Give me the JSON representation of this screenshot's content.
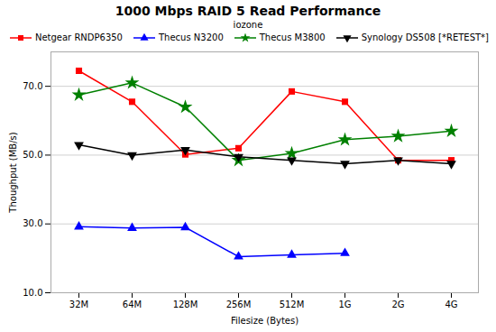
{
  "chart_data": {
    "type": "line",
    "title": "1000 Mbps RAID 5 Read Performance",
    "subtitle": "iozone",
    "xlabel": "Filesize (Bytes)",
    "ylabel": "Thoughput (MB/s)",
    "categories": [
      "32M",
      "64M",
      "128M",
      "256M",
      "512M",
      "1G",
      "2G",
      "4G"
    ],
    "series": [
      {
        "name": "Netgear RNDP6350",
        "color": "#ff0000",
        "marker": "square",
        "values": [
          74.5,
          65.5,
          50.2,
          52.0,
          68.5,
          65.5,
          48.5,
          48.5
        ]
      },
      {
        "name": "Thecus N3200",
        "color": "#0000ff",
        "marker": "triangle-up",
        "values": [
          29.2,
          28.8,
          29.0,
          20.5,
          21.0,
          21.5,
          null,
          null
        ]
      },
      {
        "name": "Thecus M3800",
        "color": "#008000",
        "marker": "star",
        "values": [
          67.5,
          71.0,
          64.0,
          48.5,
          50.5,
          54.5,
          55.5,
          57.0
        ]
      },
      {
        "name": "Synology DS508 [*RETEST*]",
        "color": "#000000",
        "marker": "triangle-down",
        "values": [
          53.0,
          50.0,
          51.5,
          49.5,
          48.5,
          47.5,
          48.5,
          47.5
        ]
      }
    ],
    "ylim": [
      10.0,
      80.0
    ],
    "yticks": [
      {
        "value": 10,
        "label": "10.0"
      },
      {
        "value": 30,
        "label": "30.0"
      },
      {
        "value": 50,
        "label": "50.0"
      },
      {
        "value": 70,
        "label": "70.0"
      }
    ],
    "grid": true,
    "legend": "upper right"
  }
}
